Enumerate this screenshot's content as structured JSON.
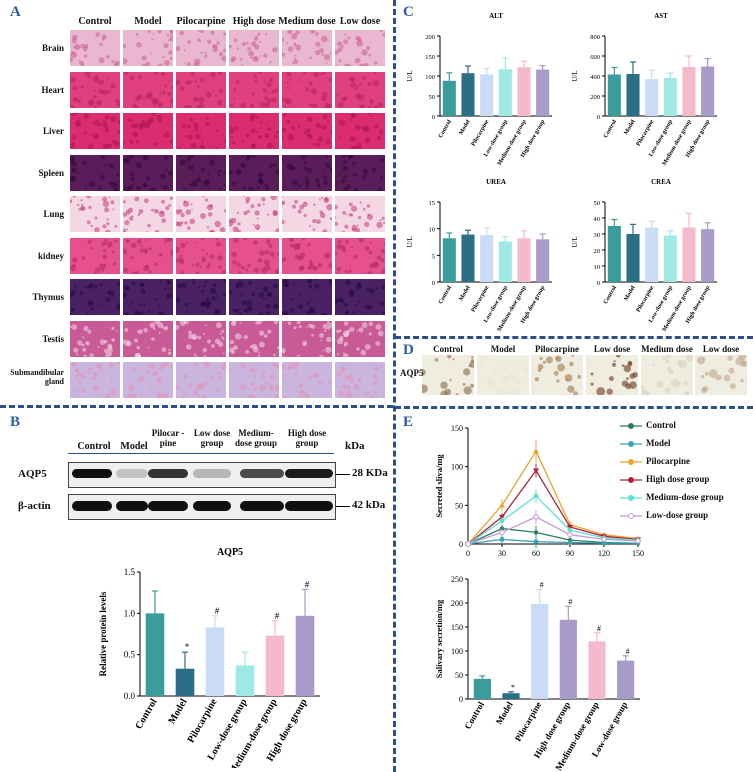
{
  "panels": {
    "A": "A",
    "B": "B",
    "C": "C",
    "D": "D",
    "E": "E"
  },
  "panelA": {
    "columns": [
      "Control",
      "Model",
      "Pilocarpine",
      "High dose",
      "Medium dose",
      "Low dose"
    ],
    "rows": [
      {
        "label": "Brain",
        "base": "#e9b7cf",
        "dot": "#c9608f"
      },
      {
        "label": "Heart",
        "base": "#e0407e",
        "dot": "#b8205e"
      },
      {
        "label": "Liver",
        "base": "#da2c6e",
        "dot": "#a91550"
      },
      {
        "label": "Spleen",
        "base": "#5a1d5a",
        "dot": "#2b0a38"
      },
      {
        "label": "Lung",
        "base": "#f3d7e2",
        "dot": "#c23a7a"
      },
      {
        "label": "kidney",
        "base": "#e5508d",
        "dot": "#b22566"
      },
      {
        "label": "Thymus",
        "base": "#4b2166",
        "dot": "#24093f"
      },
      {
        "label": "Testis",
        "base": "#c85a95",
        "dot": "#f4dbe7"
      },
      {
        "label": "Submandibular gland",
        "base": "#c9b5dd",
        "dot": "#e58fb5"
      }
    ]
  },
  "panelB": {
    "lanes": [
      "Control",
      "Model",
      "Pilocar -pine",
      "Low dose group",
      "Medium- dose group",
      "High dose group"
    ],
    "kda_header": "kDa",
    "rows": [
      {
        "label": "AQP5",
        "marker": "28 KDa",
        "intensity": [
          1.0,
          0.25,
          0.85,
          0.3,
          0.75,
          0.95
        ]
      },
      {
        "label": "β-actin",
        "marker": "42 kDa",
        "intensity": [
          1.0,
          1.0,
          1.0,
          1.0,
          1.0,
          1.0
        ]
      }
    ],
    "chart_data": {
      "type": "bar",
      "title": "AQP5",
      "ylabel": "Relative protein levels",
      "categories": [
        "Control",
        "Model",
        "Pilocarpine",
        "Low-dose group",
        "Medium-dose group",
        "High dose group"
      ],
      "values": [
        1.0,
        0.33,
        0.83,
        0.37,
        0.73,
        0.97
      ],
      "errors": [
        0.27,
        0.2,
        0.14,
        0.16,
        0.18,
        0.32
      ],
      "sig": [
        "",
        "*",
        "#",
        "",
        "#",
        "#"
      ],
      "colors": [
        "#3a9d9b",
        "#2a6f86",
        "#c9dbf5",
        "#9fe9e4",
        "#f5b9cc",
        "#a89bc9"
      ],
      "ylim": [
        0,
        1.5
      ],
      "yticks": [
        "0.0",
        "0.5",
        "1.0",
        "1.5"
      ]
    }
  },
  "panelC": {
    "charts": [
      {
        "title": "ALT",
        "ylabel": "U/L",
        "ylim": [
          0,
          200
        ],
        "yticks": [
          "0",
          "50",
          "100",
          "150",
          "200"
        ],
        "values": [
          88,
          107,
          104,
          117,
          122,
          116
        ],
        "errors": [
          20,
          18,
          15,
          28,
          15,
          10
        ]
      },
      {
        "title": "AST",
        "ylabel": "U/L",
        "ylim": [
          0,
          800
        ],
        "yticks": [
          "0",
          "200",
          "400",
          "600",
          "800"
        ],
        "values": [
          415,
          420,
          368,
          380,
          490,
          495
        ],
        "errors": [
          70,
          120,
          90,
          50,
          110,
          80
        ]
      },
      {
        "title": "UREA",
        "ylabel": "U/L",
        "ylim": [
          0,
          15
        ],
        "yticks": [
          "0",
          "5",
          "10",
          "15"
        ],
        "values": [
          8.2,
          8.9,
          8.8,
          7.6,
          8.2,
          8.0
        ],
        "errors": [
          1.0,
          0.8,
          1.3,
          0.9,
          1.4,
          1.0
        ]
      },
      {
        "title": "CREA",
        "ylabel": "U/L",
        "ylim": [
          0,
          50
        ],
        "yticks": [
          "0",
          "10",
          "20",
          "30",
          "40",
          "50"
        ],
        "values": [
          35,
          30,
          34,
          29,
          34,
          33
        ],
        "errors": [
          4,
          6,
          4,
          3,
          9,
          4
        ]
      }
    ],
    "categories": [
      "Control",
      "Model",
      "Pilocarpine",
      "Low-dose group",
      "Medium-dose group",
      "High dose group"
    ],
    "colors": [
      "#3a9d9b",
      "#2a6f86",
      "#c9dbf5",
      "#9fe9e4",
      "#f5b9cc",
      "#a89bc9"
    ]
  },
  "panelD": {
    "label": "AQP5",
    "columns": [
      "Control",
      "Model",
      "Pilocarpine",
      "Low dose",
      "Medium dose",
      "Low dose"
    ],
    "tones": [
      "#8a6a44",
      "#e9e6d8",
      "#a27a4a",
      "#6b3c1c",
      "#d9d2b8",
      "#bfa98a"
    ]
  },
  "panelE": {
    "line_chart": {
      "type": "line",
      "ylabel": "Secreted sliva/mg",
      "x": [
        0,
        30,
        60,
        90,
        120,
        150
      ],
      "xticks": [
        "0",
        "30",
        "60",
        "90",
        "120",
        "150"
      ],
      "ylim": [
        0,
        150
      ],
      "yticks": [
        "0",
        "50",
        "100",
        "150"
      ],
      "series": [
        {
          "name": "Control",
          "color": "#2a7d5b",
          "marker": "circle",
          "values": [
            0,
            20,
            15,
            5,
            2,
            1
          ]
        },
        {
          "name": "Model",
          "color": "#3aa3b3",
          "marker": "square",
          "values": [
            0,
            6,
            3,
            2,
            1,
            1
          ]
        },
        {
          "name": "Pilocarpine",
          "color": "#f0a030",
          "marker": "triangle",
          "values": [
            0,
            50,
            120,
            25,
            12,
            7
          ]
        },
        {
          "name": "High dose group",
          "color": "#b0203a",
          "marker": "triangle-down",
          "values": [
            0,
            35,
            95,
            22,
            10,
            6
          ]
        },
        {
          "name": "Medium-dose group",
          "color": "#5ee0d0",
          "marker": "diamond",
          "values": [
            0,
            30,
            62,
            18,
            8,
            5
          ]
        },
        {
          "name": "Low-dose group",
          "color": "#c49ad6",
          "marker": "circle-open",
          "values": [
            0,
            15,
            35,
            12,
            6,
            4
          ]
        }
      ],
      "errors": [
        0,
        8,
        15,
        5,
        3,
        2
      ]
    },
    "bar_chart": {
      "type": "bar",
      "ylabel": "Salivary secretion/mg",
      "categories": [
        "Control",
        "Model",
        "Pilocarpine",
        "High dose group",
        "Medium-dose group",
        "Low-dose group"
      ],
      "values": [
        42,
        12,
        198,
        165,
        120,
        80
      ],
      "errors": [
        6,
        3,
        30,
        28,
        18,
        10
      ],
      "sig": [
        "",
        "*",
        "#",
        "#",
        "#",
        "#"
      ],
      "colors": [
        "#3a9d9b",
        "#2a6f86",
        "#c9dbf5",
        "#a89bc9",
        "#f5b9cc",
        "#a89bc9"
      ],
      "ylim": [
        0,
        250
      ],
      "yticks": [
        "0",
        "50",
        "100",
        "150",
        "200",
        "250"
      ]
    }
  }
}
